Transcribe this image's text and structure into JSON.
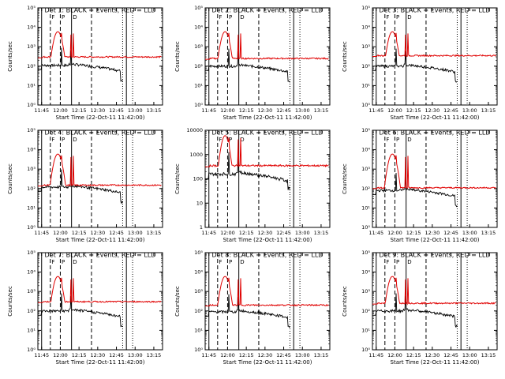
{
  "chart_data": {
    "type": "line",
    "time_axis": {
      "ticks": [
        "11:45",
        "12:00",
        "12:15",
        "12:30",
        "12:45",
        "13:00",
        "13:15"
      ],
      "xlabel": "Start Time (22-Oct-11 11:42:00)",
      "xlim_minutes_after_start": [
        0,
        100
      ]
    },
    "ylabel": "Counts/sec",
    "y_scale": "log",
    "event_markers": {
      "solid_minutes_after_start": [
        3,
        27,
        71
      ],
      "dashed_minutes_after_start": [
        10,
        18,
        43
      ],
      "dotted_minutes_after_start": [
        68,
        76
      ],
      "labels": [
        {
          "text": "F",
          "at_minutes_after_start": 11
        },
        {
          "text": "P",
          "at_minutes_after_start": 19
        },
        {
          "text": "D",
          "at_minutes_after_start": 28
        }
      ]
    },
    "series_names": [
      "Events (BLACK)",
      "LLD (RED)"
    ],
    "panels": [
      {
        "title": "Det 1: BLACK = Events, RED = LLD",
        "ylabel": "Counts/sec",
        "yticks": [
          "10⁰",
          "10¹",
          "10²",
          "10³",
          "10⁴",
          "10⁵"
        ],
        "ylim": [
          1,
          100000
        ],
        "red_base": 300,
        "red_peak": 6000,
        "black_base": 110,
        "black_end_drop": 3,
        "red_color": "#e00000",
        "black_color": "#000000"
      },
      {
        "title": "Det 2: BLACK = Events, RED = LLD",
        "ylabel": "Counts/sec",
        "yticks": [
          "10⁰",
          "10¹",
          "10²",
          "10³",
          "10⁴",
          "10⁵"
        ],
        "ylim": [
          1,
          100000
        ],
        "red_base": 250,
        "red_peak": 6000,
        "black_base": 100,
        "black_end_drop": 3,
        "red_color": "#e00000",
        "black_color": "#000000"
      },
      {
        "title": "Det 3: BLACK = Events, RED = LLD",
        "ylabel": "Counts/sec",
        "yticks": [
          "10⁰",
          "10¹",
          "10²",
          "10³",
          "10⁴",
          "10⁵"
        ],
        "ylim": [
          1,
          100000
        ],
        "red_base": 350,
        "red_peak": 6000,
        "black_base": 100,
        "black_end_drop": 3,
        "red_color": "#e00000",
        "black_color": "#000000"
      },
      {
        "title": "Det 4: BLACK = Events, RED = LLD",
        "ylabel": "Counts/sec",
        "yticks": [
          "10⁰",
          "10¹",
          "10²",
          "10³",
          "10⁴",
          "10⁵"
        ],
        "ylim": [
          1,
          100000
        ],
        "red_base": 150,
        "red_peak": 6000,
        "black_base": 120,
        "black_end_drop": 3,
        "red_color": "#e00000",
        "black_color": "#000000"
      },
      {
        "title": "Det 5: BLACK = Events, RED = LLD",
        "ylabel": "Counts/sec",
        "yticks": [
          "1",
          "10",
          "100",
          "1000",
          "10000"
        ],
        "ylim": [
          1,
          10000
        ],
        "red_base": 350,
        "red_peak": 6000,
        "black_base": 160,
        "black_end_drop": 2,
        "red_color": "#e00000",
        "black_color": "#000000"
      },
      {
        "title": "Det 6: BLACK = Events, RED = LLD",
        "ylabel": "Counts/sec",
        "yticks": [
          "10⁰",
          "10¹",
          "10²",
          "10³",
          "10⁴",
          "10⁵"
        ],
        "ylim": [
          1,
          100000
        ],
        "red_base": 110,
        "red_peak": 6000,
        "black_base": 80,
        "black_end_drop": 3,
        "red_color": "#e00000",
        "black_color": "#000000"
      },
      {
        "title": "Det 7: BLACK = Events, RED = LLD",
        "ylabel": "Counts/sec",
        "yticks": [
          "10⁰",
          "10¹",
          "10²",
          "10³",
          "10⁴",
          "10⁵"
        ],
        "ylim": [
          1,
          100000
        ],
        "red_base": 300,
        "red_peak": 6000,
        "black_base": 100,
        "black_end_drop": 3,
        "red_color": "#e00000",
        "black_color": "#000000"
      },
      {
        "title": "Det 8: BLACK = Events, RED = LLD",
        "ylabel": "Counts/sec",
        "yticks": [
          "10⁰",
          "10¹",
          "10²",
          "10³",
          "10⁴",
          "10⁵"
        ],
        "ylim": [
          1,
          100000
        ],
        "red_base": 200,
        "red_peak": 6000,
        "black_base": 90,
        "black_end_drop": 3,
        "red_color": "#e00000",
        "black_color": "#000000"
      },
      {
        "title": "Det 9: BLACK = Events, RED = LLD",
        "ylabel": "Counts/sec",
        "yticks": [
          "10⁰",
          "10¹",
          "10²",
          "10³",
          "10⁴",
          "10⁵"
        ],
        "ylim": [
          1,
          100000
        ],
        "red_base": 250,
        "red_peak": 6000,
        "black_base": 100,
        "black_end_drop": 3,
        "red_color": "#e00000",
        "black_color": "#000000"
      }
    ]
  }
}
